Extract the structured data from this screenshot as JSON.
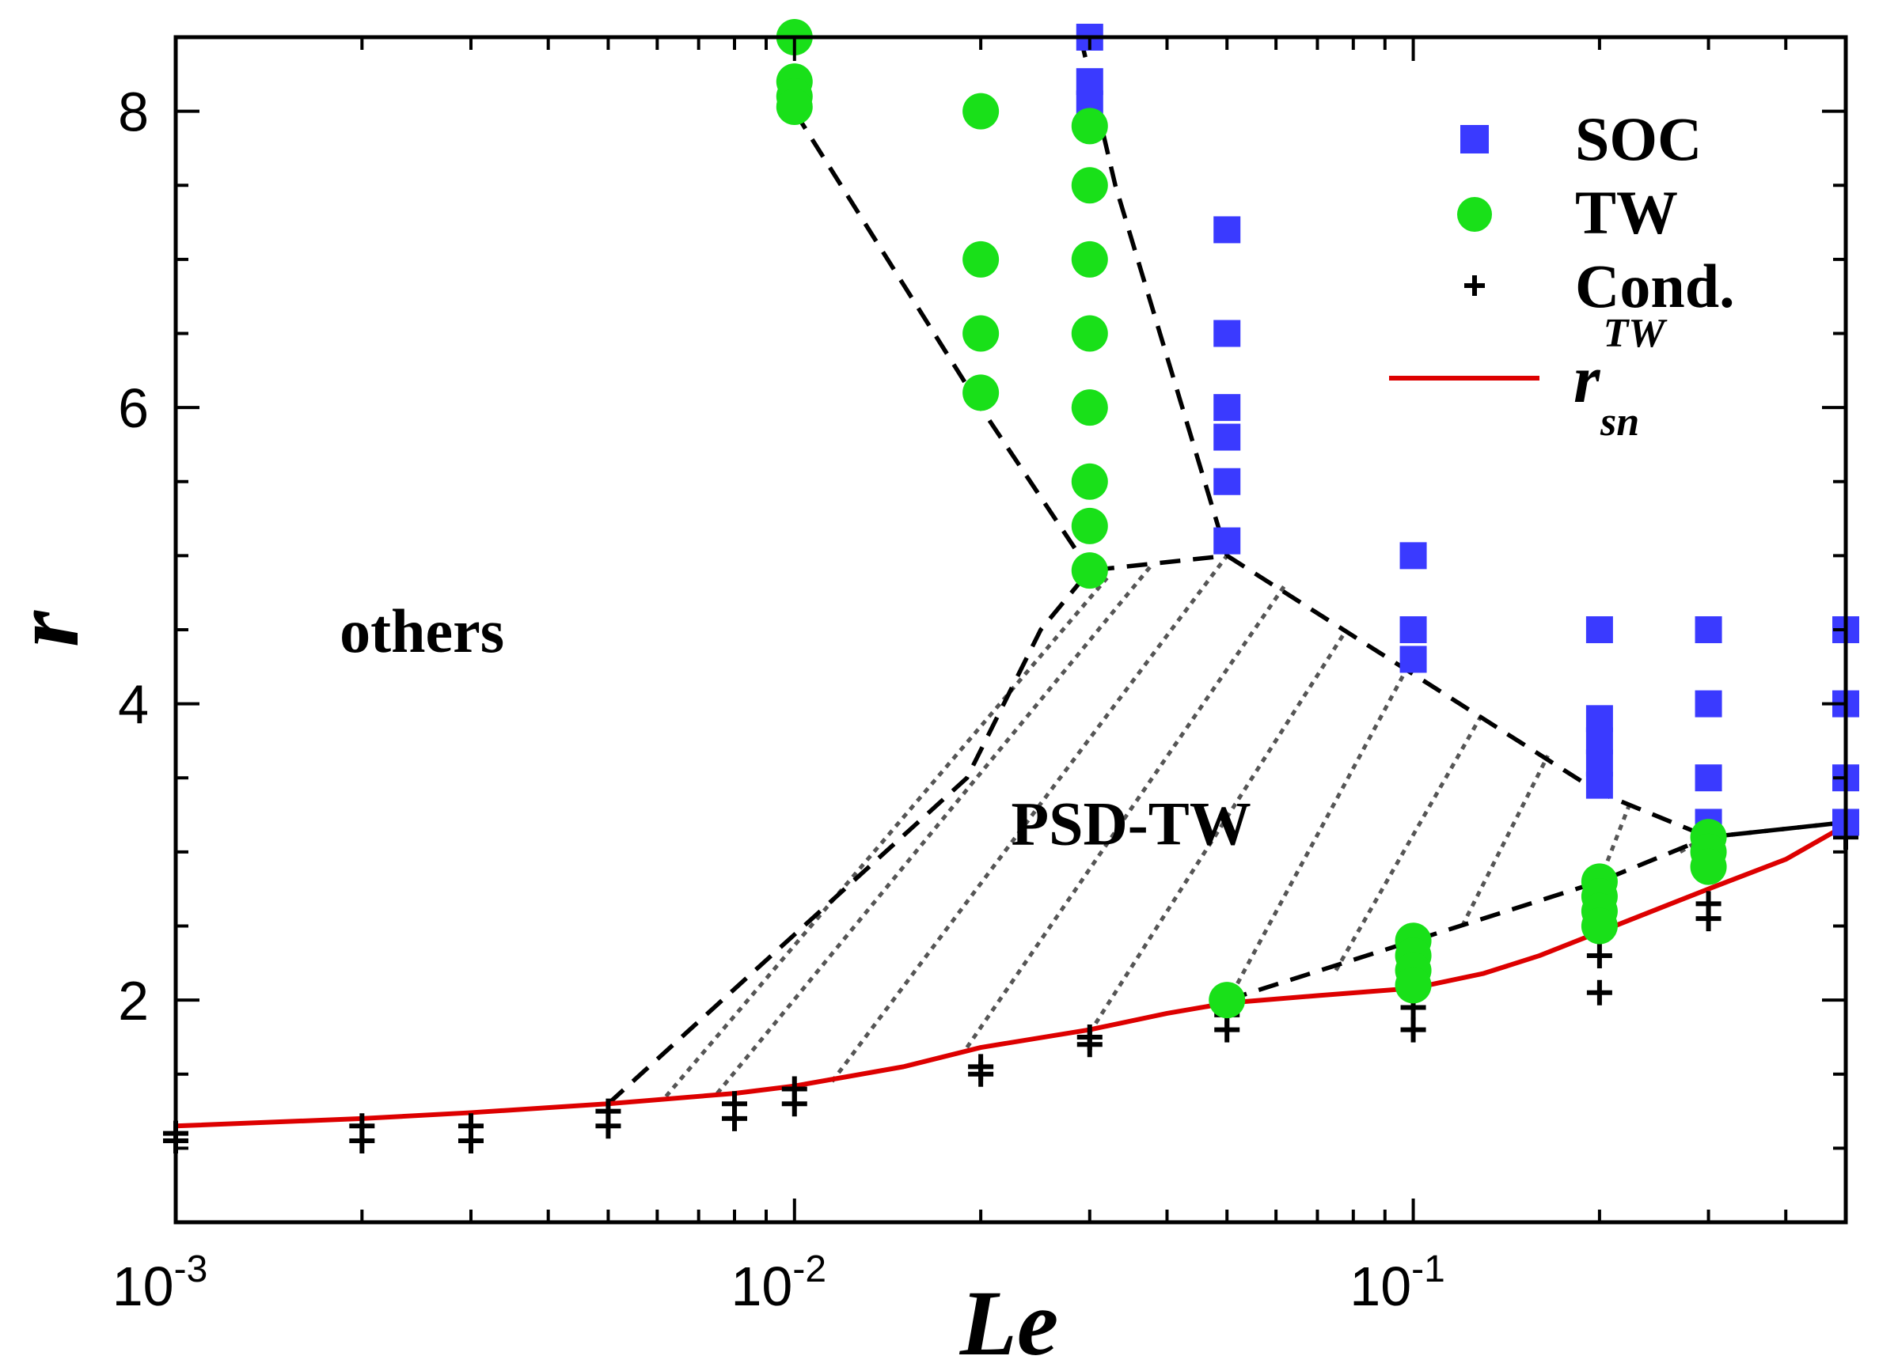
{
  "chart_data": {
    "type": "scatter",
    "title": "",
    "xlabel": "Le",
    "ylabel": "r",
    "xscale": "log",
    "xlim": [
      0.001,
      0.5
    ],
    "ylim": [
      0.5,
      8.5
    ],
    "x_ticks": [
      {
        "value": 0.001,
        "base": "10",
        "exp": "-3"
      },
      {
        "value": 0.01,
        "base": "10",
        "exp": "-2"
      },
      {
        "value": 0.1,
        "base": "10",
        "exp": "-1"
      }
    ],
    "y_ticks": [
      {
        "value": 2,
        "label": "2"
      },
      {
        "value": 4,
        "label": "4"
      },
      {
        "value": 6,
        "label": "6"
      },
      {
        "value": 8,
        "label": "8"
      }
    ],
    "legend": {
      "position": "top-right",
      "entries": [
        {
          "key": "SOC",
          "label": "SOC",
          "color": "#3a3aff",
          "marker": "square"
        },
        {
          "key": "TW",
          "label": "TW",
          "color": "#19e019",
          "marker": "circle"
        },
        {
          "key": "Cond",
          "label": "Cond.",
          "color": "#000000",
          "marker": "plus"
        },
        {
          "key": "rsn",
          "label_main": "r",
          "label_sup": "TW",
          "label_sub": "sn",
          "color": "#dd0000",
          "marker": "line"
        }
      ]
    },
    "annotations": [
      {
        "text": "others",
        "x": 0.0025,
        "y": 4.5
      },
      {
        "text": "PSD-TW",
        "x": 0.035,
        "y": 3.2
      }
    ],
    "series": [
      {
        "name": "SOC",
        "marker": "square",
        "color": "#3a3aff",
        "points": [
          [
            0.03,
            8.5
          ],
          [
            0.03,
            8.2
          ],
          [
            0.03,
            8.05
          ],
          [
            0.05,
            7.2
          ],
          [
            0.05,
            6.5
          ],
          [
            0.05,
            6.0
          ],
          [
            0.05,
            5.8
          ],
          [
            0.05,
            5.5
          ],
          [
            0.05,
            5.1
          ],
          [
            0.1,
            5.0
          ],
          [
            0.1,
            4.5
          ],
          [
            0.1,
            4.3
          ],
          [
            0.2,
            4.5
          ],
          [
            0.2,
            3.9
          ],
          [
            0.2,
            3.75
          ],
          [
            0.2,
            3.6
          ],
          [
            0.2,
            3.45
          ],
          [
            0.3,
            4.5
          ],
          [
            0.3,
            4.0
          ],
          [
            0.3,
            3.5
          ],
          [
            0.3,
            3.2
          ],
          [
            0.5,
            4.5
          ],
          [
            0.5,
            4.0
          ],
          [
            0.5,
            3.5
          ],
          [
            0.5,
            3.2
          ]
        ]
      },
      {
        "name": "TW",
        "marker": "circle",
        "color": "#19e019",
        "points": [
          [
            0.01,
            8.5
          ],
          [
            0.01,
            8.2
          ],
          [
            0.01,
            8.1
          ],
          [
            0.01,
            8.03
          ],
          [
            0.02,
            8.0
          ],
          [
            0.02,
            7.0
          ],
          [
            0.02,
            6.5
          ],
          [
            0.02,
            6.1
          ],
          [
            0.03,
            7.9
          ],
          [
            0.03,
            7.5
          ],
          [
            0.03,
            7.0
          ],
          [
            0.03,
            6.5
          ],
          [
            0.03,
            6.0
          ],
          [
            0.03,
            5.5
          ],
          [
            0.03,
            5.2
          ],
          [
            0.03,
            4.9
          ],
          [
            0.05,
            2.0
          ],
          [
            0.1,
            2.4
          ],
          [
            0.1,
            2.3
          ],
          [
            0.1,
            2.2
          ],
          [
            0.1,
            2.1
          ],
          [
            0.2,
            2.8
          ],
          [
            0.2,
            2.7
          ],
          [
            0.2,
            2.6
          ],
          [
            0.2,
            2.5
          ],
          [
            0.3,
            3.1
          ],
          [
            0.3,
            3.0
          ],
          [
            0.3,
            2.9
          ]
        ]
      },
      {
        "name": "Cond.",
        "marker": "plus",
        "color": "#000000",
        "points": [
          [
            0.001,
            1.1
          ],
          [
            0.001,
            1.05
          ],
          [
            0.002,
            1.15
          ],
          [
            0.002,
            1.05
          ],
          [
            0.003,
            1.15
          ],
          [
            0.003,
            1.05
          ],
          [
            0.005,
            1.25
          ],
          [
            0.005,
            1.15
          ],
          [
            0.008,
            1.3
          ],
          [
            0.008,
            1.2
          ],
          [
            0.01,
            1.4
          ],
          [
            0.01,
            1.3
          ],
          [
            0.02,
            1.55
          ],
          [
            0.02,
            1.5
          ],
          [
            0.03,
            1.75
          ],
          [
            0.03,
            1.7
          ],
          [
            0.05,
            1.9
          ],
          [
            0.05,
            1.8
          ],
          [
            0.1,
            1.95
          ],
          [
            0.1,
            1.8
          ],
          [
            0.2,
            2.3
          ],
          [
            0.2,
            2.05
          ],
          [
            0.3,
            2.65
          ],
          [
            0.3,
            2.55
          ],
          [
            0.5,
            3.1
          ]
        ]
      }
    ],
    "rsn_curve": [
      [
        0.001,
        1.15
      ],
      [
        0.002,
        1.2
      ],
      [
        0.003,
        1.24
      ],
      [
        0.005,
        1.3
      ],
      [
        0.008,
        1.37
      ],
      [
        0.01,
        1.42
      ],
      [
        0.015,
        1.55
      ],
      [
        0.02,
        1.68
      ],
      [
        0.03,
        1.8
      ],
      [
        0.04,
        1.91
      ],
      [
        0.05,
        1.98
      ],
      [
        0.07,
        2.03
      ],
      [
        0.1,
        2.08
      ],
      [
        0.13,
        2.18
      ],
      [
        0.16,
        2.3
      ],
      [
        0.2,
        2.46
      ],
      [
        0.25,
        2.62
      ],
      [
        0.3,
        2.75
      ],
      [
        0.4,
        2.95
      ],
      [
        0.5,
        3.18
      ]
    ],
    "boundaries": [
      {
        "name": "others-boundary",
        "points": [
          [
            0.005,
            1.3
          ],
          [
            0.019,
            3.5
          ],
          [
            0.025,
            4.5
          ],
          [
            0.03,
            4.9
          ],
          [
            0.05,
            5.0
          ]
        ]
      },
      {
        "name": "upper-left-boundary",
        "points": [
          [
            0.01,
            8.0
          ],
          [
            0.02,
            6.0
          ],
          [
            0.03,
            4.9
          ]
        ]
      },
      {
        "name": "upper-right-boundary",
        "points": [
          [
            0.029,
            8.5
          ],
          [
            0.033,
            7.5
          ],
          [
            0.05,
            5.0
          ]
        ]
      },
      {
        "name": "soc-boundary",
        "points": [
          [
            0.05,
            5.0
          ],
          [
            0.1,
            4.2
          ],
          [
            0.2,
            3.4
          ],
          [
            0.3,
            3.1
          ],
          [
            0.5,
            3.2
          ]
        ]
      },
      {
        "name": "psd-lower-boundary",
        "points": [
          [
            0.05,
            2.0
          ],
          [
            0.2,
            2.8
          ],
          [
            0.3,
            3.1
          ],
          [
            0.5,
            3.2
          ]
        ]
      }
    ]
  }
}
